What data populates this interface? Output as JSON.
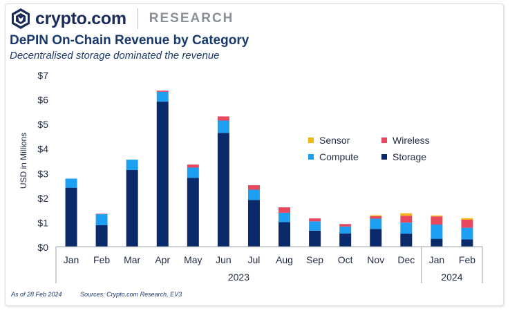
{
  "brand": {
    "logo_icon": "crypto-com-lion-shield-icon",
    "name": "crypto.com",
    "section": "RESEARCH"
  },
  "header": {
    "title": "DePIN On-Chain Revenue by Category",
    "subtitle": "Decentralised storage dominated the revenue"
  },
  "footer": {
    "as_of": "As of 28 Feb 2024",
    "sources": "Sources: Crypto.com Research, EV3"
  },
  "colors": {
    "brand": "#1a2c57",
    "title": "#1a3a6e",
    "storage": "#0b2a6b",
    "compute": "#1ea0f2",
    "wireless": "#e8485d",
    "sensor": "#f4b616"
  },
  "chart_data": {
    "type": "bar",
    "stacked": true,
    "title": "DePIN On-Chain Revenue by Category",
    "ylabel": "USD in Millions",
    "xlabel": "",
    "ylim": [
      0,
      7
    ],
    "yticks": [
      0,
      1,
      2,
      3,
      4,
      5,
      6,
      7
    ],
    "ytick_labels": [
      "$0",
      "$1",
      "$2",
      "$3",
      "$4",
      "$5",
      "$6",
      "$7"
    ],
    "grid": false,
    "legend_position": "right-center",
    "categories": [
      "Jan",
      "Feb",
      "Mar",
      "Apr",
      "May",
      "Jun",
      "Jul",
      "Aug",
      "Sep",
      "Oct",
      "Nov",
      "Dec",
      "Jan",
      "Feb"
    ],
    "year_groups": [
      {
        "label": "2023",
        "count": 12
      },
      {
        "label": "2024",
        "count": 2
      }
    ],
    "series": [
      {
        "name": "Storage",
        "color_key": "storage",
        "values": [
          2.4,
          0.88,
          3.12,
          5.9,
          2.8,
          4.63,
          1.9,
          1.0,
          0.65,
          0.54,
          0.72,
          0.53,
          0.32,
          0.3
        ]
      },
      {
        "name": "Compute",
        "color_key": "compute",
        "values": [
          0.37,
          0.44,
          0.42,
          0.4,
          0.42,
          0.5,
          0.42,
          0.38,
          0.38,
          0.28,
          0.42,
          0.45,
          0.58,
          0.47
        ]
      },
      {
        "name": "Wireless",
        "color_key": "wireless",
        "values": [
          0.0,
          0.02,
          0.0,
          0.05,
          0.12,
          0.17,
          0.18,
          0.22,
          0.12,
          0.1,
          0.1,
          0.28,
          0.33,
          0.33
        ]
      },
      {
        "name": "Sensor",
        "color_key": "sensor",
        "values": [
          0.0,
          0.0,
          0.0,
          0.0,
          0.0,
          0.0,
          0.0,
          0.0,
          0.0,
          0.0,
          0.04,
          0.1,
          0.04,
          0.06
        ]
      }
    ],
    "legend_order": [
      "Sensor",
      "Wireless",
      "Compute",
      "Storage"
    ]
  }
}
